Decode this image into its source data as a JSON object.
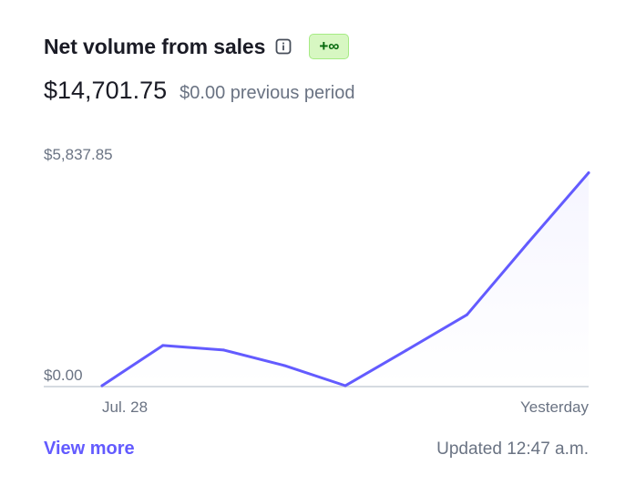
{
  "header": {
    "title": "Net volume from sales",
    "info_icon": "info-icon",
    "badge": "+∞"
  },
  "metric": {
    "value": "$14,701.75",
    "previous": "$0.00 previous period"
  },
  "chart_data": {
    "type": "line",
    "x_start_label": "Jul. 28",
    "x_end_label": "Yesterday",
    "y_top_label": "$5,837.85",
    "y_bottom_label": "$0.00",
    "ylim": [
      0,
      5837.85
    ],
    "grid": false,
    "series": [
      {
        "color": "#635bff",
        "values": [
          0,
          1060,
          940,
          530,
          0,
          930,
          1870,
          3760,
          5610
        ]
      }
    ]
  },
  "footer": {
    "link": "View more",
    "updated": "Updated 12:47 a.m."
  },
  "colors": {
    "accent": "#635bff",
    "badge_bg": "#d7f7c2",
    "badge_text": "#05690d"
  }
}
